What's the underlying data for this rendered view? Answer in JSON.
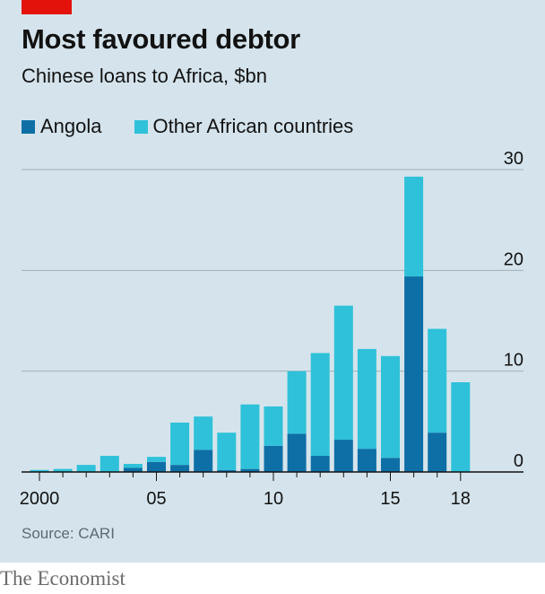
{
  "header": {
    "title": "Most favoured debtor",
    "subtitle": "Chinese loans to Africa, $bn"
  },
  "footer": {
    "source": "Source: CARI",
    "brand": "The Economist"
  },
  "colors": {
    "angola": "#0e6fa6",
    "other": "#2fc1d9",
    "background": "#d5e4ec",
    "accent": "#e3120b"
  },
  "chart_data": {
    "type": "bar",
    "stacked": true,
    "title": "Most favoured debtor",
    "subtitle": "Chinese loans to Africa, $bn",
    "categories": [
      "2000",
      "2001",
      "2002",
      "2003",
      "2004",
      "2005",
      "2006",
      "2007",
      "2008",
      "2009",
      "2010",
      "2011",
      "2012",
      "2013",
      "2014",
      "2015",
      "2016",
      "2017",
      "2018"
    ],
    "series": [
      {
        "name": "Angola",
        "values": [
          0,
          0,
          0,
          0,
          0.4,
          1.0,
          0.7,
          2.2,
          0.2,
          0.3,
          2.6,
          3.8,
          1.6,
          3.2,
          2.3,
          1.4,
          19.4,
          3.9,
          0
        ]
      },
      {
        "name": "Other African countries",
        "values": [
          0.2,
          0.3,
          0.7,
          1.6,
          0.4,
          0.5,
          4.2,
          3.3,
          3.7,
          6.4,
          3.9,
          6.2,
          10.2,
          13.3,
          9.9,
          10.1,
          9.9,
          10.3,
          8.9
        ]
      }
    ],
    "xtick_labels": [
      "2000",
      "05",
      "10",
      "15",
      "18"
    ],
    "xtick_positions": [
      "2000",
      "2005",
      "2010",
      "2015",
      "2018"
    ],
    "ytick_labels": [
      "0",
      "10",
      "20",
      "30"
    ],
    "ylim": [
      0,
      30
    ],
    "grid": "horizontal",
    "legend": "top-left"
  }
}
